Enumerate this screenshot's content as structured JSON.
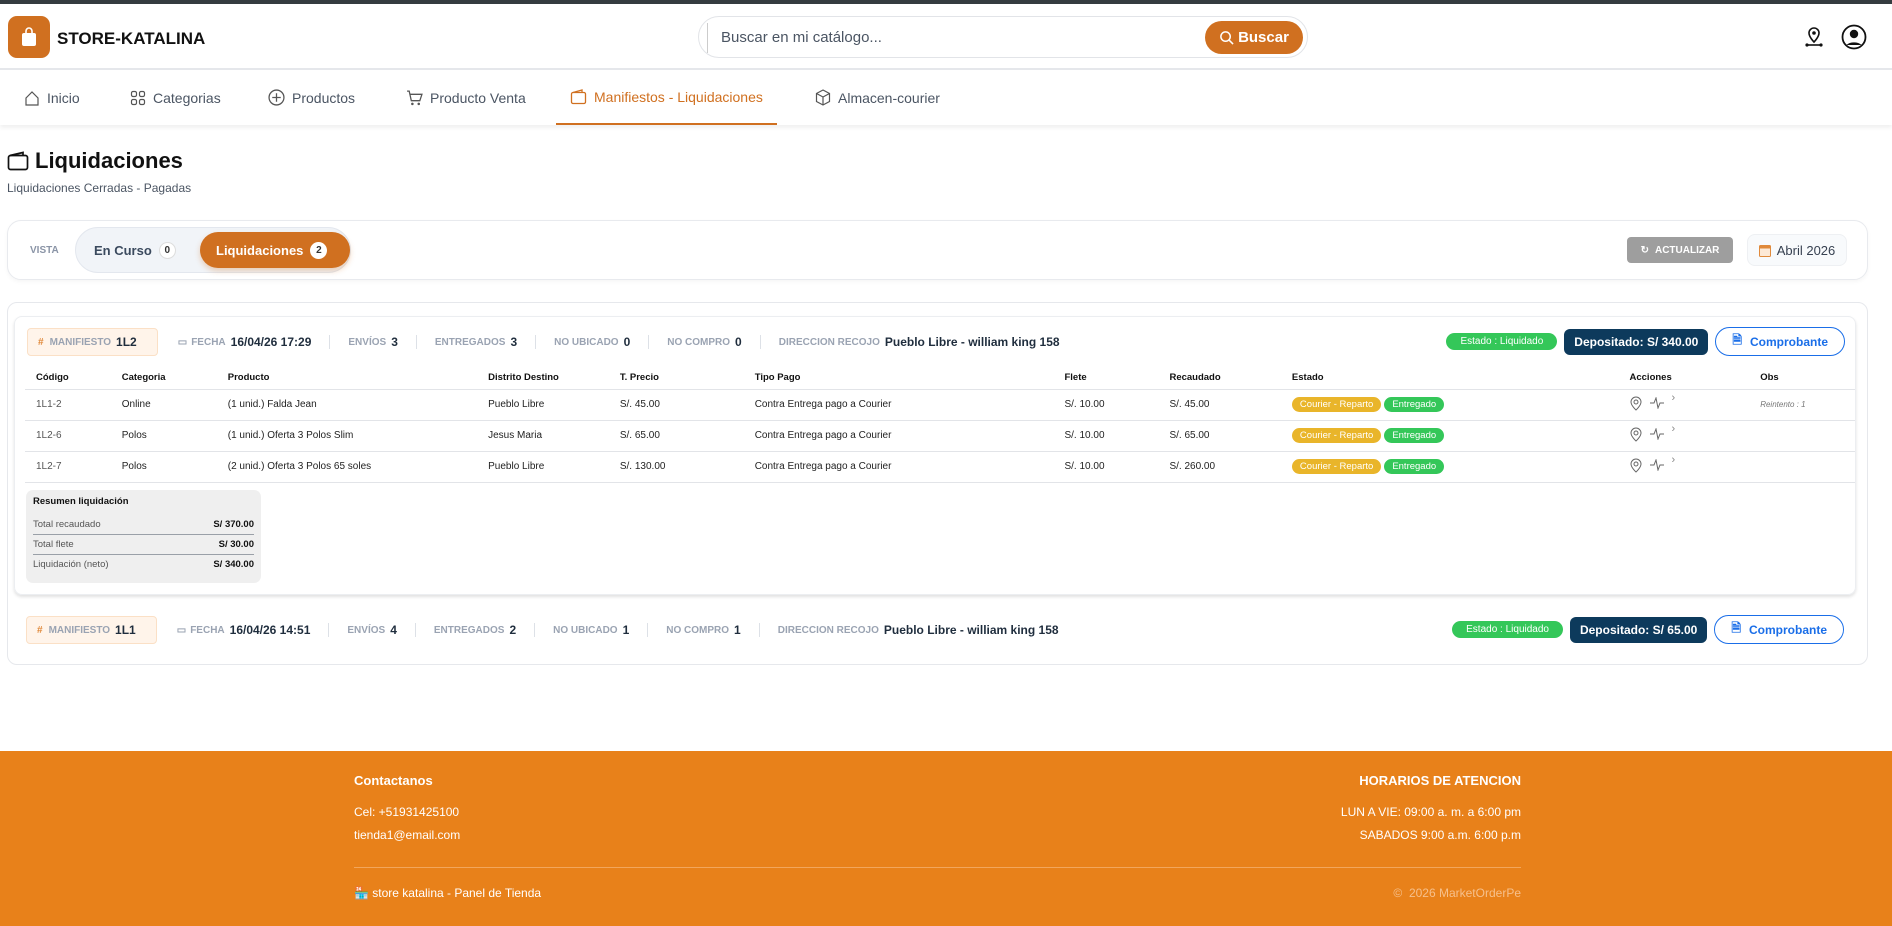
{
  "header": {
    "brand": "STORE-KATALINA",
    "search_placeholder": "Buscar en mi catálogo...",
    "search_button": "Buscar"
  },
  "nav": [
    {
      "label": "Inicio",
      "icon": "home-icon"
    },
    {
      "label": "Categorias",
      "icon": "grid-icon"
    },
    {
      "label": "Productos",
      "icon": "plus-circle-icon"
    },
    {
      "label": "Producto Venta",
      "icon": "cart-icon"
    },
    {
      "label": "Manifiestos - Liquidaciones",
      "icon": "wallet-icon",
      "active": true
    },
    {
      "label": "Almacen-courier",
      "icon": "box-icon"
    }
  ],
  "page": {
    "title": "Liquidaciones",
    "subtitle": "Liquidaciones Cerradas - Pagadas"
  },
  "vista": {
    "label": "VISTA",
    "tabs": [
      {
        "label": "En Curso",
        "count": "0"
      },
      {
        "label": "Liquidaciones",
        "count": "2",
        "active": true
      }
    ],
    "refresh": "ACTUALIZAR",
    "month": "Abril 2026"
  },
  "labels": {
    "manifiesto": "MANIFIESTO",
    "fecha": "FECHA",
    "envios": "ENVÍOS",
    "entregados": "ENTREGADOS",
    "no_ubicado": "NO UBICADO",
    "no_compro": "NO COMPRO",
    "direccion": "DIRECCION RECOJO",
    "comprobante": "Comprobante"
  },
  "manifests": [
    {
      "id": "1L2",
      "fecha": "16/04/26 17:29",
      "envios": "3",
      "entregados": "3",
      "no_ubicado": "0",
      "no_compro": "0",
      "direccion": "Pueblo Libre - william king 158",
      "estado": "Estado : Liquidado",
      "depositado": "Depositado: S/ 340.00",
      "columns": [
        "Código",
        "Categoria",
        "Producto",
        "Distrito Destino",
        "T. Precio",
        "Tipo Pago",
        "Flete",
        "Recaudado",
        "Estado",
        "Acciones",
        "Obs"
      ],
      "rows": [
        {
          "codigo": "1L1-2",
          "categoria": "Online",
          "producto": "(1 unid.) Falda Jean",
          "distrito": "Pueblo Libre",
          "precio": "S/. 45.00",
          "tipo": "Contra Entrega pago a Courier",
          "flete": "S/. 10.00",
          "recaudado": "S/. 45.00",
          "estado1": "Courier - Reparto",
          "estado2": "Entregado",
          "obs": "Reintento : 1"
        },
        {
          "codigo": "1L2-6",
          "categoria": "Polos",
          "producto": "(1 unid.) Oferta 3 Polos Slim",
          "distrito": "Jesus Maria",
          "precio": "S/. 65.00",
          "tipo": "Contra Entrega pago a Courier",
          "flete": "S/. 10.00",
          "recaudado": "S/. 65.00",
          "estado1": "Courier - Reparto",
          "estado2": "Entregado",
          "obs": ""
        },
        {
          "codigo": "1L2-7",
          "categoria": "Polos",
          "producto": "(2 unid.) Oferta 3 Polos 65 soles",
          "distrito": "Pueblo Libre",
          "precio": "S/. 130.00",
          "tipo": "Contra Entrega pago a Courier",
          "flete": "S/. 10.00",
          "recaudado": "S/. 260.00",
          "estado1": "Courier - Reparto",
          "estado2": "Entregado",
          "obs": ""
        }
      ],
      "resumen": {
        "title": "Resumen liquidación",
        "items": [
          {
            "label": "Total recaudado",
            "value": "S/ 370.00"
          },
          {
            "label": "Total flete",
            "value": "S/ 30.00"
          },
          {
            "label": "Liquidación (neto)",
            "value": "S/ 340.00"
          }
        ]
      }
    },
    {
      "id": "1L1",
      "fecha": "16/04/26 14:51",
      "envios": "4",
      "entregados": "2",
      "no_ubicado": "1",
      "no_compro": "1",
      "direccion": "Pueblo Libre - william king 158",
      "estado": "Estado : Liquidado",
      "depositado": "Depositado: S/ 65.00"
    }
  ],
  "footer": {
    "contact_title": "Contactanos",
    "phone": "Cel: +51931425100",
    "email": "tienda1@email.com",
    "store": "store katalina - Panel de Tienda",
    "hours_title": "HORARIOS DE ATENCION",
    "weekday": "LUN A VIE: 09:00 a. m. a 6:00 pm",
    "saturday": "SABADOS 9:00 a.m. 6:00 p.m",
    "copyright": "2026 MarketOrderPe"
  },
  "colors": {
    "accent": "#d07020",
    "footer": "#e8811a",
    "navy": "#0d3a5c",
    "green": "#34c759",
    "yellow": "#e9b52a",
    "blue": "#1a6ee8"
  }
}
